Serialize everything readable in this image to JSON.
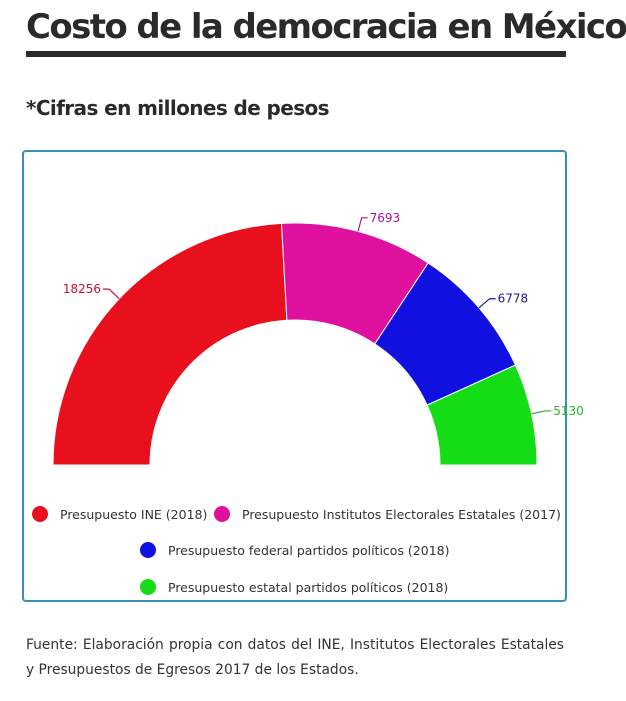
{
  "title": "Costo de la democracia en México",
  "subtitle": "*Cifras en millones de pesos",
  "source": "Fuente: Elaboración propia con datos del INE, Institutos Electorales Estatales y Presupuestos de Egresos 2017 de los Estados.",
  "chart_data": {
    "type": "pie",
    "variant": "semi-donut",
    "categories": [
      "Presupuesto INE (2018)",
      "Presupuesto Institutos Electorales Estatales (2017)",
      "Presupuesto federal partidos políticos (2018)",
      "Presupuesto estatal partidos políticos (2018)"
    ],
    "values": [
      18256,
      7693,
      6778,
      5130
    ],
    "data_labels": [
      "18256",
      "7693",
      "6778",
      "5130"
    ],
    "colors": [
      "#e8101c",
      "#e0109e",
      "#1010e0",
      "#15dd15"
    ],
    "label_colors": [
      "#c8102e",
      "#b0108a",
      "#1a1a90",
      "#2ab52a"
    ],
    "legend_position": "bottom"
  }
}
